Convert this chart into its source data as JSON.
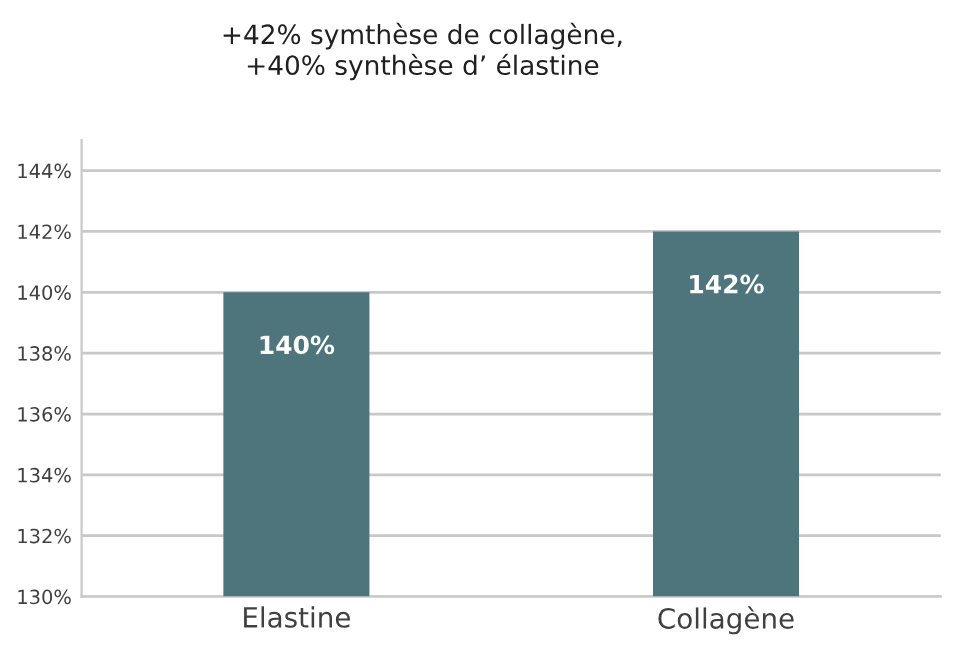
{
  "chart_data": {
    "type": "bar",
    "title": "+42% symthèse de collagène,\n+40% synthèse d’ élastine",
    "categories": [
      "Elastine",
      "Collagène"
    ],
    "values": [
      140,
      142
    ],
    "color": "#4e757c",
    "value_labels": [
      "140%",
      "142%"
    ],
    "ylim": [
      130,
      145
    ],
    "yticks": [
      {
        "value": 130,
        "label": "130%"
      },
      {
        "value": 132,
        "label": "132%"
      },
      {
        "value": 134,
        "label": "134%"
      },
      {
        "value": 136,
        "label": "136%"
      },
      {
        "value": 138,
        "label": "138%"
      },
      {
        "value": 140,
        "label": "140%"
      },
      {
        "value": 142,
        "label": "142%"
      },
      {
        "value": 144,
        "label": "144%"
      }
    ],
    "grid": "y",
    "legend": false
  }
}
